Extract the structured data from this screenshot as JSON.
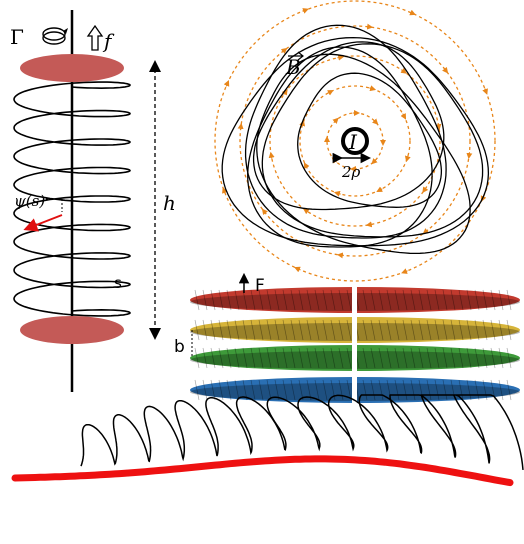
{
  "panel_a": {
    "twist_label": "Γ",
    "force_label": "f",
    "height_label": "h",
    "angle_label": "ψ(s)",
    "arc_label": "s"
  },
  "panel_b": {
    "field_label": "B",
    "current_label": "I",
    "radius_label": "2ρ"
  },
  "panel_c": {
    "force_label": "F",
    "spacing_label": "b",
    "layer_colors": [
      "#c23a2e",
      "#d6b43a",
      "#3e9a3a",
      "#2a6fb3"
    ]
  },
  "colors": {
    "disk": "#c45a57",
    "field_lines": "#e8861a",
    "tangent_arrow": "#e01010",
    "backbone": "#ee1111",
    "wire": "#000000"
  }
}
